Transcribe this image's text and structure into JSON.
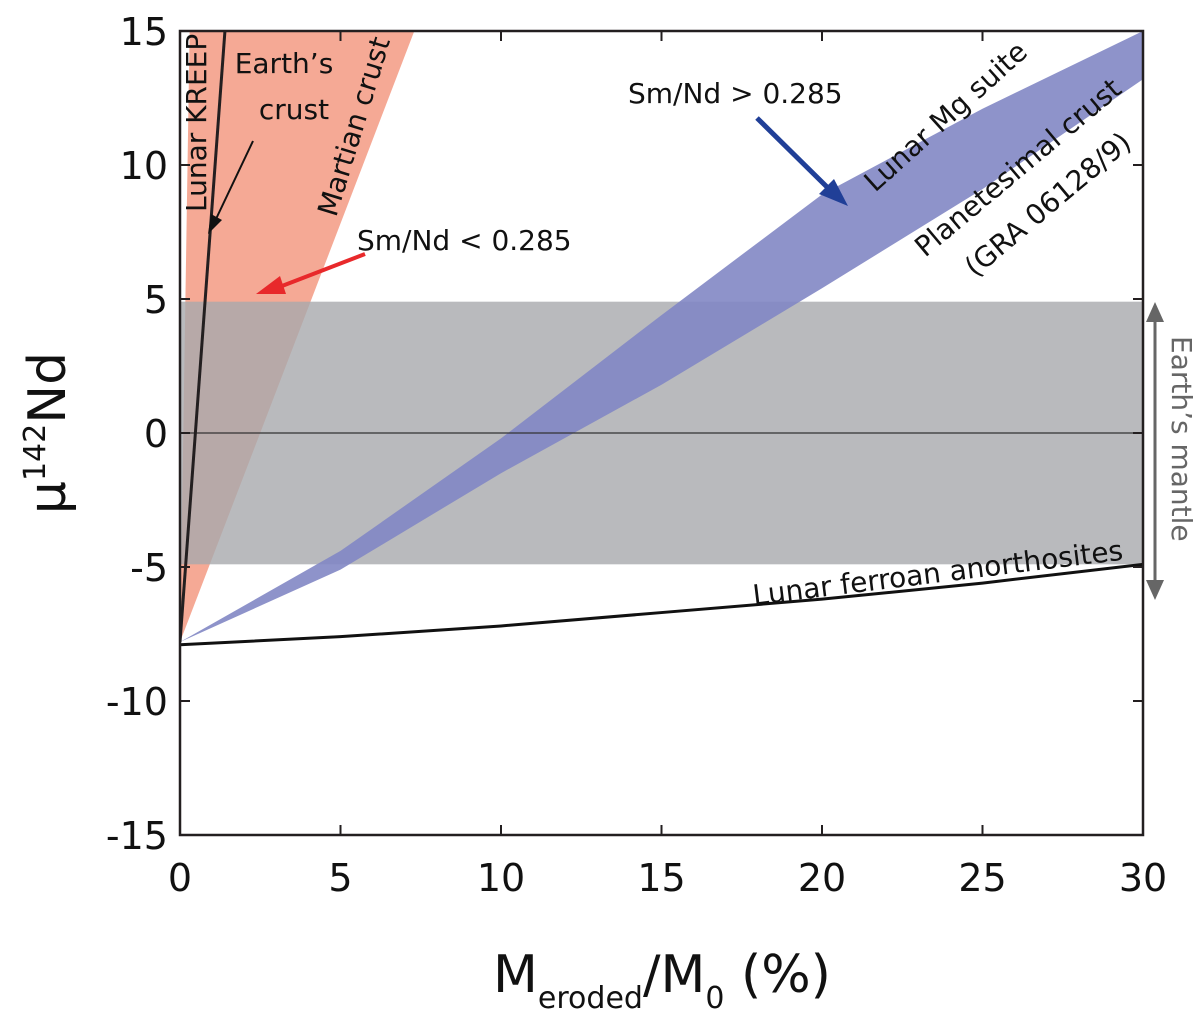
{
  "chart_data": {
    "type": "area",
    "xlabel": {
      "main": "M",
      "sub": "eroded",
      "mid": "/M",
      "sub2": "0",
      "tail": " (%)"
    },
    "ylabel": {
      "main": "μ",
      "sup": "142",
      "tail": "Nd"
    },
    "xlim": [
      0,
      30
    ],
    "ylim": [
      -15,
      15
    ],
    "xticks": [
      0,
      5,
      10,
      15,
      20,
      25,
      30
    ],
    "yticks": [
      15,
      10,
      5,
      0,
      -5,
      -10,
      -15
    ],
    "grid": false,
    "colors": {
      "orange_band": "#f3937a",
      "blue_band": "#8287c4",
      "grey_band": "#a7a9ac",
      "red_arrow": "#e8292b",
      "blue_arrow": "#203f97",
      "grey_arrow": "#666666"
    },
    "bands": [
      {
        "name": "Earth's mantle",
        "y_range": [
          -4.9,
          4.9
        ]
      },
      {
        "name": "Martian crust + Earth's crust",
        "x": [
          0,
          1.3,
          7.3
        ],
        "lower": [
          -7.8,
          15,
          15
        ],
        "upper": [
          -7.8,
          15,
          15
        ],
        "left_edge_x_at_y15": 0.3
      },
      {
        "name": "Lunar Mg suite / Planetesimal crust",
        "x": [
          0,
          5,
          10,
          15,
          20,
          25,
          30
        ],
        "upper": [
          -7.8,
          -4.4,
          -0.2,
          4.4,
          8.9,
          12.1,
          15.0
        ],
        "lower": [
          -7.8,
          -5.1,
          -1.5,
          1.8,
          5.4,
          9.1,
          13.2
        ]
      }
    ],
    "series": [
      {
        "name": "Lunar KREEP",
        "x": [
          0,
          1.4
        ],
        "y": [
          -7.8,
          15
        ]
      },
      {
        "name": "Lunar ferroan anorthosites",
        "x": [
          0,
          5,
          10,
          15,
          20,
          25,
          30
        ],
        "y": [
          -7.9,
          -7.6,
          -7.2,
          -6.7,
          -6.2,
          -5.6,
          -4.9
        ]
      }
    ],
    "annotations": {
      "kreep": "Lunar KREEP",
      "earth_crust_1": "Earth’s",
      "earth_crust_2": "crust",
      "martian": "Martian crust",
      "smnd_low": "Sm/Nd < 0.285",
      "smnd_high": "Sm/Nd > 0.285",
      "mg_suite": "Lunar Mg suite",
      "planetesimal_1": "Planetesimal crust",
      "planetesimal_2": "(GRA 06128/9)",
      "ferroan": "Lunar ferroan anorthosites",
      "earth_mantle": "Earth’s mantle"
    }
  }
}
